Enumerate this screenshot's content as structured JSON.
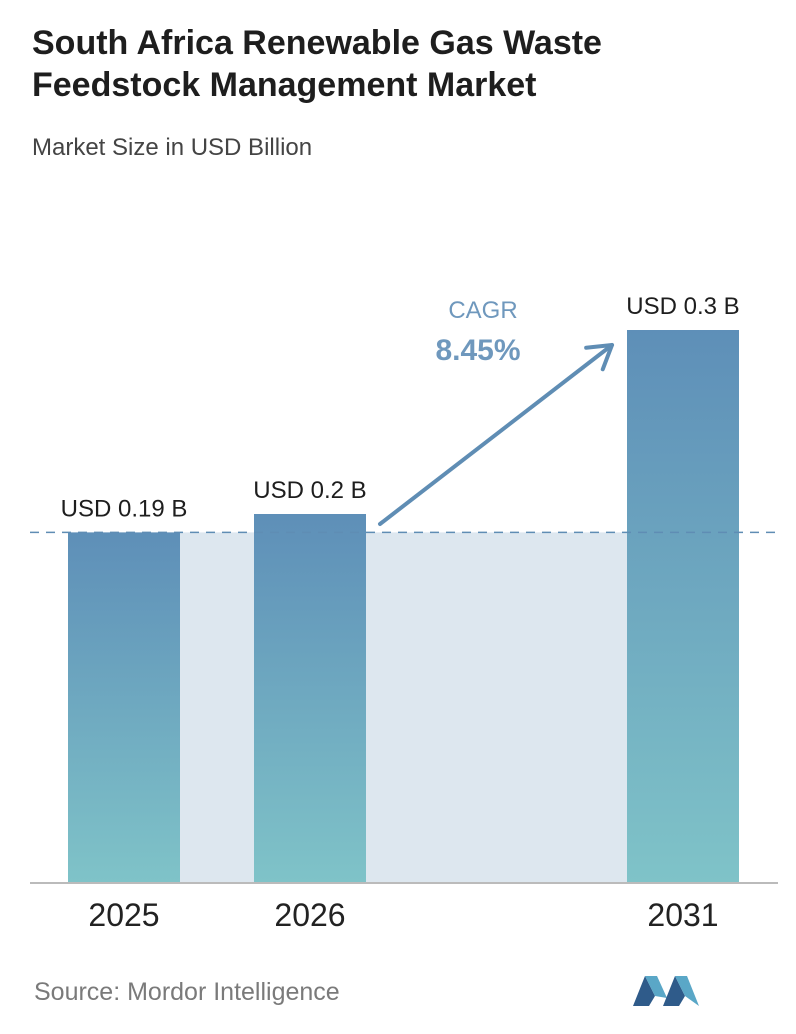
{
  "header": {
    "title": "South Africa Renewable Gas Waste Feedstock Management Market",
    "subtitle": "Market Size in USD Billion"
  },
  "cagr": {
    "label": "CAGR",
    "value": "8.45%"
  },
  "footer": {
    "source": "Source:  Mordor Intelligence",
    "logo_icon": "mordor-intelligence-logo-icon"
  },
  "colors": {
    "bar_top": "#5e8fb8",
    "bar_bottom": "#7fc3c8",
    "band": "#dde7ef",
    "arrow": "#5f8db4",
    "cagr_text": "#6f98bd",
    "dashed_line": "#5f8db4",
    "axis": "#bbbbbb"
  },
  "chart_data": {
    "type": "bar",
    "categories": [
      "2025",
      "2026",
      "2031"
    ],
    "values": [
      0.19,
      0.2,
      0.3
    ],
    "data_labels": [
      "USD 0.19 B",
      "USD 0.2 B",
      "USD 0.3 B"
    ],
    "title": "South Africa Renewable Gas Waste Feedstock Management Market",
    "subtitle": "Market Size in USD Billion",
    "xlabel": "",
    "ylabel": "",
    "ylim": [
      0,
      0.3
    ],
    "grid": false,
    "legend": "none",
    "annotations": [
      {
        "type": "cagr-arrow",
        "label": "CAGR",
        "value": "8.45%",
        "from": "2026",
        "to": "2031"
      },
      {
        "type": "dashed-reference-line",
        "value": 0.19
      }
    ]
  }
}
